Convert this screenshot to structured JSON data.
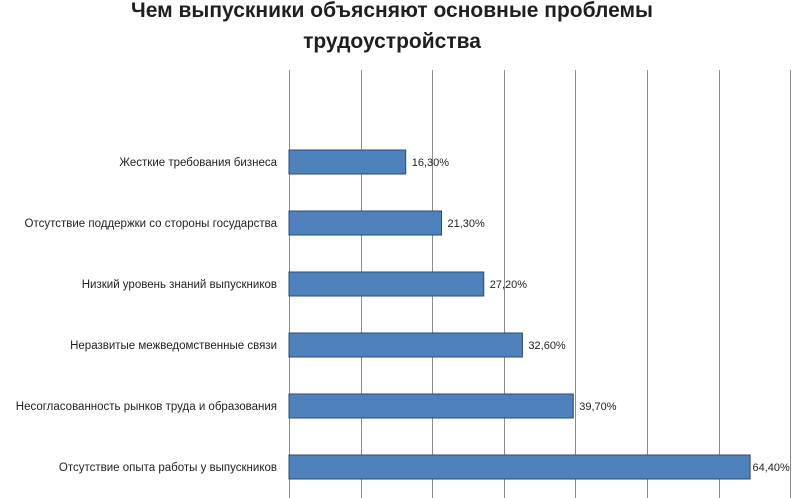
{
  "chart_data": {
    "type": "bar",
    "orientation": "horizontal",
    "title_lines": [
      "Чем выпускники объясняют основные проблемы",
      "трудоустройства"
    ],
    "categories": [
      "Жесткие требования бизнеса",
      "Отсутствие поддержки со стороны государства",
      "Низкий уровень знаний выпускников",
      "Неразвитые межведомственные связи",
      "Несогласованность рынков труда и образования",
      "Отсутствие опыта работы у выпускников"
    ],
    "values": [
      16.3,
      21.3,
      27.2,
      32.6,
      39.7,
      64.4
    ],
    "value_labels": [
      "16,30%",
      "21,30%",
      "27,20%",
      "32,60%",
      "39,70%",
      "64,40%"
    ],
    "xlim": [
      0,
      70
    ],
    "x_gridline_step": 10,
    "grid": true,
    "legend": "none",
    "colors": {
      "bar_fill": "#4f81bd",
      "bar_stroke": "#2a4a74",
      "gridline": "#8c8c8c",
      "text": "#1f1f1f"
    }
  }
}
